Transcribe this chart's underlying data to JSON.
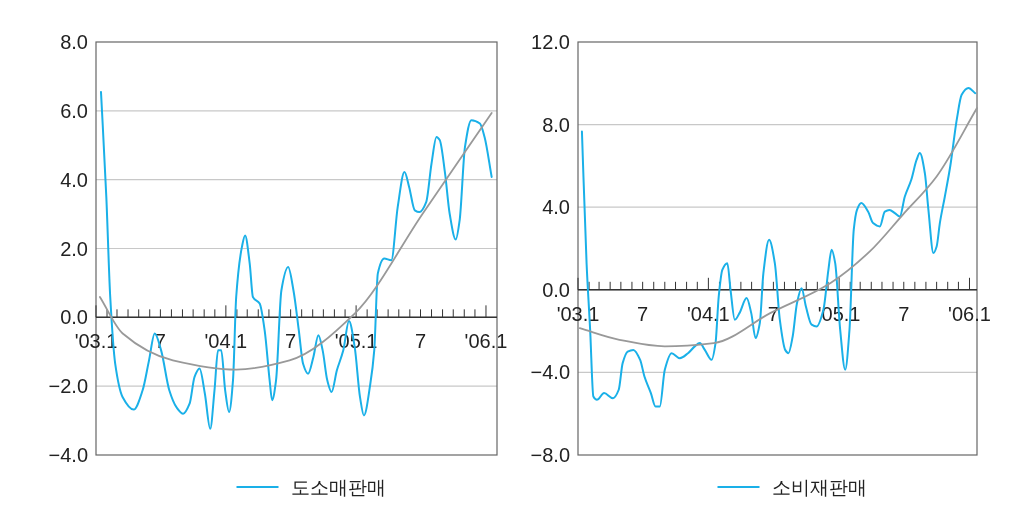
{
  "chart_data": [
    {
      "type": "line",
      "xlim": [
        "2003-01-01",
        "2006-02-01"
      ],
      "ylim": [
        -4,
        8
      ],
      "yticks": [
        {
          "value": -4,
          "label": "−4.0"
        },
        {
          "value": -2,
          "label": "−2.0"
        },
        {
          "value": 0,
          "label": "0.0"
        },
        {
          "value": 2,
          "label": "2.0"
        },
        {
          "value": 4,
          "label": "4.0"
        },
        {
          "value": 6,
          "label": "6.0"
        },
        {
          "value": 8,
          "label": "8.0"
        }
      ],
      "xticks": [
        {
          "value": "2003-01",
          "label": "'03.1"
        },
        {
          "value": "2003-02",
          "label": null
        },
        {
          "value": "2003-03",
          "label": null
        },
        {
          "value": "2003-04",
          "label": null
        },
        {
          "value": "2003-05",
          "label": null
        },
        {
          "value": "2003-06",
          "label": null
        },
        {
          "value": "2003-07",
          "label": "7"
        },
        {
          "value": "2003-08",
          "label": null
        },
        {
          "value": "2003-09",
          "label": null
        },
        {
          "value": "2003-10",
          "label": null
        },
        {
          "value": "2003-11",
          "label": null
        },
        {
          "value": "2003-12",
          "label": null
        },
        {
          "value": "2004-01",
          "label": "'04.1"
        },
        {
          "value": "2004-02",
          "label": null
        },
        {
          "value": "2004-03",
          "label": null
        },
        {
          "value": "2004-04",
          "label": null
        },
        {
          "value": "2004-05",
          "label": null
        },
        {
          "value": "2004-06",
          "label": null
        },
        {
          "value": "2004-07",
          "label": "7"
        },
        {
          "value": "2004-08",
          "label": null
        },
        {
          "value": "2004-09",
          "label": null
        },
        {
          "value": "2004-10",
          "label": null
        },
        {
          "value": "2004-11",
          "label": null
        },
        {
          "value": "2004-12",
          "label": null
        },
        {
          "value": "2005-01",
          "label": "'05.1"
        },
        {
          "value": "2005-02",
          "label": null
        },
        {
          "value": "2005-03",
          "label": null
        },
        {
          "value": "2005-04",
          "label": null
        },
        {
          "value": "2005-05",
          "label": null
        },
        {
          "value": "2005-06",
          "label": null
        },
        {
          "value": "2005-07",
          "label": "7"
        },
        {
          "value": "2005-08",
          "label": null
        },
        {
          "value": "2005-09",
          "label": null
        },
        {
          "value": "2005-10",
          "label": null
        },
        {
          "value": "2005-11",
          "label": null
        },
        {
          "value": "2005-12",
          "label": null
        },
        {
          "value": "2006-01",
          "label": "'06.1"
        }
      ],
      "grid": "y",
      "legend": "bottom",
      "series": [
        {
          "name": "도소매판매",
          "color": "#1ab0e8",
          "x": [
            "2003-01-15",
            "2003-01-30",
            "2003-02-10",
            "2003-02-24",
            "2003-03-17",
            "2003-04-17",
            "2003-05-12",
            "2003-05-30",
            "2003-06-15",
            "2003-07-03",
            "2003-07-26",
            "2003-08-15",
            "2003-09-03",
            "2003-09-21",
            "2003-10-05",
            "2003-10-19",
            "2003-11-03",
            "2003-11-18",
            "2003-11-30",
            "2003-12-10",
            "2003-12-19",
            "2003-12-30",
            "2004-01-10",
            "2004-01-21",
            "2004-01-30",
            "2004-02-15",
            "2004-02-24",
            "2004-03-08",
            "2004-03-17",
            "2004-04-05",
            "2004-04-19",
            "2004-05-03",
            "2004-05-10",
            "2004-05-21",
            "2004-06-05",
            "2004-06-24",
            "2004-07-09",
            "2004-07-24",
            "2004-08-05",
            "2004-08-19",
            "2004-09-03",
            "2004-09-17",
            "2004-09-29",
            "2004-10-12",
            "2004-10-24",
            "2004-11-08",
            "2004-11-26",
            "2004-12-12",
            "2004-12-28",
            "2005-01-12",
            "2005-01-23",
            "2005-02-10",
            "2005-02-21",
            "2005-03-03",
            "2005-03-21",
            "2005-04-10",
            "2005-04-28",
            "2005-05-17",
            "2005-05-30",
            "2005-06-15",
            "2005-06-28",
            "2005-07-17",
            "2005-08-01",
            "2005-08-15",
            "2005-08-24",
            "2005-09-08",
            "2005-09-21",
            "2005-10-08",
            "2005-10-19",
            "2005-11-03",
            "2005-11-21",
            "2005-12-15",
            "2005-12-28",
            "2006-01-17"
          ],
          "values": [
            6.55,
            3.5,
            0.59,
            -1.35,
            -2.32,
            -2.68,
            -2.12,
            -1.25,
            -0.47,
            -0.96,
            -2.12,
            -2.61,
            -2.8,
            -2.51,
            -1.73,
            -1.49,
            -2.22,
            -3.24,
            -2.12,
            -0.96,
            -0.96,
            -2.12,
            -2.75,
            -1.83,
            0.59,
            2.04,
            2.38,
            1.56,
            0.59,
            0.4,
            -0.38,
            -1.83,
            -2.41,
            -1.83,
            0.78,
            1.46,
            0.78,
            -0.38,
            -1.35,
            -1.64,
            -1.15,
            -0.52,
            -0.96,
            -1.83,
            -2.17,
            -1.54,
            -0.96,
            -0.11,
            -0.86,
            -2.32,
            -2.85,
            -1.93,
            -0.96,
            1.27,
            1.71,
            1.66,
            3.21,
            4.22,
            3.79,
            3.11,
            3.06,
            3.35,
            4.47,
            5.24,
            5.15,
            4.18,
            3.01,
            2.26,
            2.82,
            4.95,
            5.73,
            5.63,
            5.24,
            4.08
          ]
        },
        {
          "type": "line",
          "color": "#999999",
          "x": [
            "2003-01-12",
            "2003-03-17",
            "2003-08-05",
            "2004-01-30",
            "2004-06-28",
            "2004-12-28",
            "2005-07-07",
            "2006-01-17"
          ],
          "values": [
            0.59,
            -0.47,
            -1.25,
            -1.52,
            -1.25,
            0.11,
            3.01,
            5.94
          ]
        }
      ]
    },
    {
      "type": "line",
      "xlim": [
        "2003-01-01",
        "2006-01-22"
      ],
      "ylim": [
        -8,
        12
      ],
      "yticks": [
        {
          "value": -8,
          "label": "−8.0"
        },
        {
          "value": -4,
          "label": "−4.0"
        },
        {
          "value": 0,
          "label": "0.0"
        },
        {
          "value": 4,
          "label": "4.0"
        },
        {
          "value": 8,
          "label": "8.0"
        },
        {
          "value": 12,
          "label": "12.0"
        }
      ],
      "xticks": [
        {
          "value": "2003-01",
          "label": "'03.1"
        },
        {
          "value": "2003-02",
          "label": null
        },
        {
          "value": "2003-03",
          "label": null
        },
        {
          "value": "2003-04",
          "label": null
        },
        {
          "value": "2003-05",
          "label": null
        },
        {
          "value": "2003-06",
          "label": null
        },
        {
          "value": "2003-07",
          "label": "7"
        },
        {
          "value": "2003-08",
          "label": null
        },
        {
          "value": "2003-09",
          "label": null
        },
        {
          "value": "2003-10",
          "label": null
        },
        {
          "value": "2003-11",
          "label": null
        },
        {
          "value": "2003-12",
          "label": null
        },
        {
          "value": "2004-01",
          "label": "'04.1"
        },
        {
          "value": "2004-02",
          "label": null
        },
        {
          "value": "2004-03",
          "label": null
        },
        {
          "value": "2004-04",
          "label": null
        },
        {
          "value": "2004-05",
          "label": null
        },
        {
          "value": "2004-06",
          "label": null
        },
        {
          "value": "2004-07",
          "label": "7"
        },
        {
          "value": "2004-08",
          "label": null
        },
        {
          "value": "2004-09",
          "label": null
        },
        {
          "value": "2004-10",
          "label": null
        },
        {
          "value": "2004-11",
          "label": null
        },
        {
          "value": "2004-12",
          "label": null
        },
        {
          "value": "2005-01",
          "label": "'05.1"
        },
        {
          "value": "2005-02",
          "label": null
        },
        {
          "value": "2005-03",
          "label": null
        },
        {
          "value": "2005-04",
          "label": null
        },
        {
          "value": "2005-05",
          "label": null
        },
        {
          "value": "2005-06",
          "label": null
        },
        {
          "value": "2005-07",
          "label": "7"
        },
        {
          "value": "2005-08",
          "label": null
        },
        {
          "value": "2005-09",
          "label": null
        },
        {
          "value": "2005-10",
          "label": null
        },
        {
          "value": "2005-11",
          "label": null
        },
        {
          "value": "2005-12",
          "label": null
        },
        {
          "value": "2006-01",
          "label": "'06.1"
        }
      ],
      "grid": "y",
      "legend": "bottom",
      "series": [
        {
          "name": "소비재판매",
          "color": "#1ab0e8",
          "x": [
            "2003-01-12",
            "2003-01-25",
            "2003-02-04",
            "2003-02-13",
            "2003-02-23",
            "2003-03-15",
            "2003-04-09",
            "2003-04-25",
            "2003-05-06",
            "2003-05-20",
            "2003-06-05",
            "2003-06-24",
            "2003-07-06",
            "2003-07-24",
            "2003-08-06",
            "2003-08-18",
            "2003-09-01",
            "2003-09-20",
            "2003-10-13",
            "2003-11-05",
            "2003-11-24",
            "2003-12-08",
            "2003-12-22",
            "2004-01-10",
            "2004-01-21",
            "2004-01-30",
            "2004-02-09",
            "2004-02-23",
            "2004-03-03",
            "2004-03-15",
            "2004-03-28",
            "2004-04-17",
            "2004-04-30",
            "2004-05-12",
            "2004-05-24",
            "2004-06-03",
            "2004-06-19",
            "2004-07-05",
            "2004-07-19",
            "2004-08-03",
            "2004-08-12",
            "2004-08-24",
            "2004-09-05",
            "2004-09-18",
            "2004-09-30",
            "2004-10-16",
            "2004-10-30",
            "2004-11-18",
            "2004-12-02",
            "2004-12-11",
            "2004-12-21",
            "2005-01-04",
            "2005-01-18",
            "2005-01-30",
            "2005-02-11",
            "2005-02-20",
            "2005-03-04",
            "2005-03-23",
            "2005-04-06",
            "2005-04-25",
            "2005-05-09",
            "2005-05-22",
            "2005-06-06",
            "2005-06-20",
            "2005-07-04",
            "2005-07-22",
            "2005-08-06",
            "2005-08-15",
            "2005-08-29",
            "2005-09-08",
            "2005-09-22",
            "2005-10-01",
            "2005-10-10",
            "2005-10-24",
            "2005-11-08",
            "2005-11-27",
            "2005-12-10",
            "2005-12-29",
            "2006-01-17"
          ],
          "values": [
            7.67,
            1.29,
            -1.94,
            -5.17,
            -5.33,
            -5.0,
            -5.25,
            -4.84,
            -3.55,
            -2.99,
            -2.91,
            -3.39,
            -4.2,
            -5.0,
            -5.65,
            -5.65,
            -3.87,
            -3.07,
            -3.31,
            -3.07,
            -2.74,
            -2.58,
            -2.91,
            -3.39,
            -2.58,
            -0.32,
            0.97,
            1.29,
            0,
            -1.45,
            -1.13,
            -0.4,
            -1.13,
            -2.34,
            -1.61,
            0.81,
            2.42,
            1.29,
            -1.45,
            -2.91,
            -3.07,
            -2.26,
            -0.65,
            0.08,
            -0.81,
            -1.69,
            -1.78,
            -0.97,
            0.97,
            1.94,
            1.29,
            -1.94,
            -3.87,
            -1.94,
            2.91,
            3.87,
            4.2,
            3.79,
            3.23,
            3.07,
            3.79,
            3.87,
            3.71,
            3.55,
            4.52,
            5.33,
            6.3,
            6.62,
            5.65,
            3.87,
            1.78,
            2.1,
            3.23,
            4.52,
            5.97,
            8.31,
            9.44,
            9.77,
            9.52
          ]
        },
        {
          "type": "line",
          "color": "#999999",
          "x": [
            "2003-01-06",
            "2003-04-27",
            "2003-09-01",
            "2004-01-16",
            "2004-06-22",
            "2004-12-07",
            "2005-03-28",
            "2005-06-28",
            "2005-10-01",
            "2006-01-22"
          ],
          "values": [
            -1.86,
            -2.42,
            -2.74,
            -2.58,
            -1.13,
            0.32,
            1.86,
            3.63,
            5.49,
            8.8
          ]
        }
      ]
    }
  ]
}
